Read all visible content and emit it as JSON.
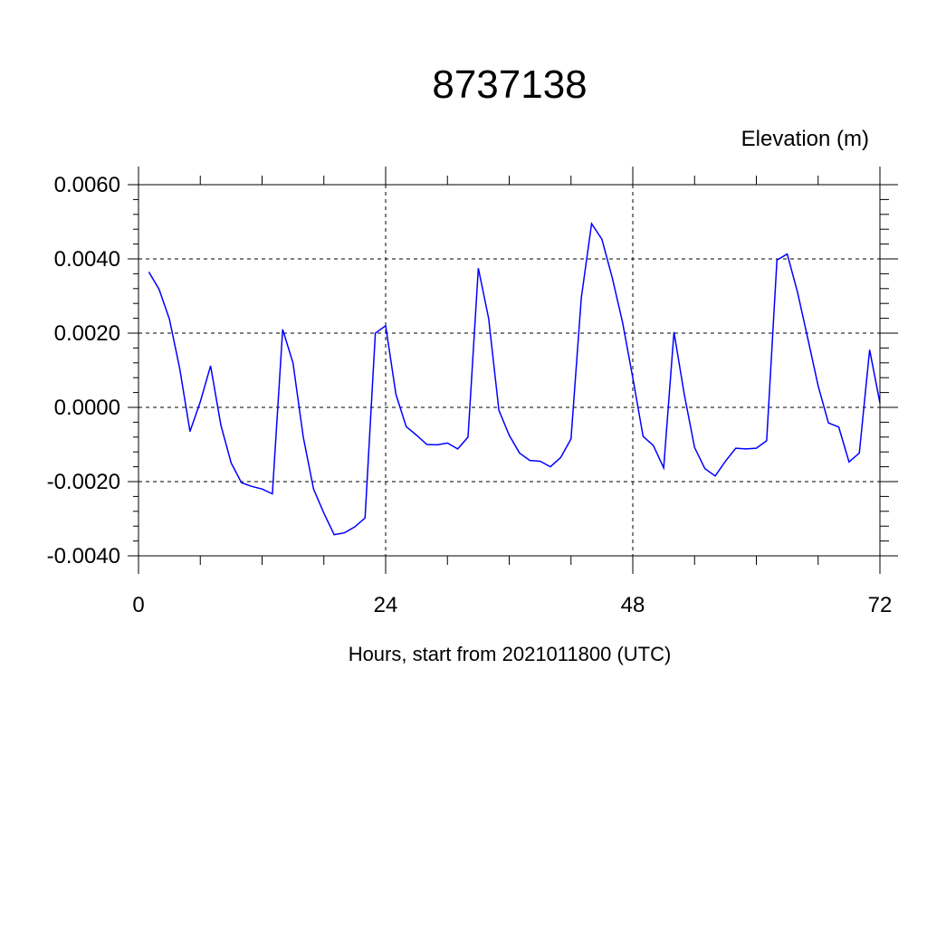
{
  "chart_data": {
    "type": "line",
    "title": "8737138",
    "ylabel": "Elevation (m)",
    "xlabel": "Hours, start from 2021011800 (UTC)",
    "xlim": [
      0,
      72
    ],
    "ylim": [
      -0.004,
      0.006
    ],
    "x_major_ticks": [
      0,
      24,
      48,
      72
    ],
    "x_tick_labels": [
      "0",
      "24",
      "48",
      "72"
    ],
    "y_major_ticks": [
      -0.004,
      -0.002,
      0.0,
      0.002,
      0.004,
      0.006
    ],
    "y_tick_labels": [
      "-0.0040",
      "-0.0020",
      "0.0000",
      "0.0020",
      "0.0040",
      "0.0060"
    ],
    "grid": true,
    "grid_style": "dashed",
    "line_color": "#0000ff",
    "series": [
      {
        "x": [
          1,
          2,
          3,
          4,
          5,
          6,
          7,
          8,
          9,
          10,
          11,
          12,
          13,
          14,
          15,
          16,
          17,
          18,
          19,
          20,
          21,
          22,
          23,
          24,
          25,
          26,
          27,
          28,
          29,
          30,
          31,
          32,
          33,
          34,
          35,
          36,
          37,
          38,
          39,
          40,
          41,
          42,
          43,
          44,
          45,
          46,
          47,
          48,
          49,
          50,
          51,
          52,
          53,
          54,
          55,
          56,
          57,
          58,
          59,
          60,
          61,
          62,
          63,
          64,
          65,
          66,
          67,
          68,
          69,
          70,
          71,
          72
        ],
        "values": [
          0.00365,
          0.00318,
          0.00238,
          0.00105,
          -0.00065,
          0.00015,
          0.00112,
          -0.00048,
          -0.0015,
          -0.00203,
          -0.00213,
          -0.0022,
          -0.00233,
          0.0021,
          0.0012,
          -0.0008,
          -0.0022,
          -0.00285,
          -0.00343,
          -0.00338,
          -0.00322,
          -0.00298,
          0.002,
          0.0022,
          0.00035,
          -0.00052,
          -0.00075,
          -0.001,
          -0.00101,
          -0.00096,
          -0.00112,
          -0.0008,
          0.00375,
          0.0024,
          -8e-05,
          -0.00075,
          -0.00123,
          -0.00143,
          -0.00145,
          -0.0016,
          -0.00135,
          -0.00085,
          0.00295,
          0.00495,
          0.00453,
          0.0035,
          0.0023,
          0.0008,
          -0.00078,
          -0.00103,
          -0.00163,
          0.00203,
          0.00035,
          -0.00108,
          -0.00165,
          -0.00185,
          -0.00145,
          -0.0011,
          -0.00112,
          -0.0011,
          -0.0009,
          0.00397,
          0.00413,
          0.0031,
          0.00185,
          0.00058,
          -0.00042,
          -0.00053,
          -0.00147,
          -0.00123,
          0.00155,
          0.00012
        ]
      }
    ]
  }
}
